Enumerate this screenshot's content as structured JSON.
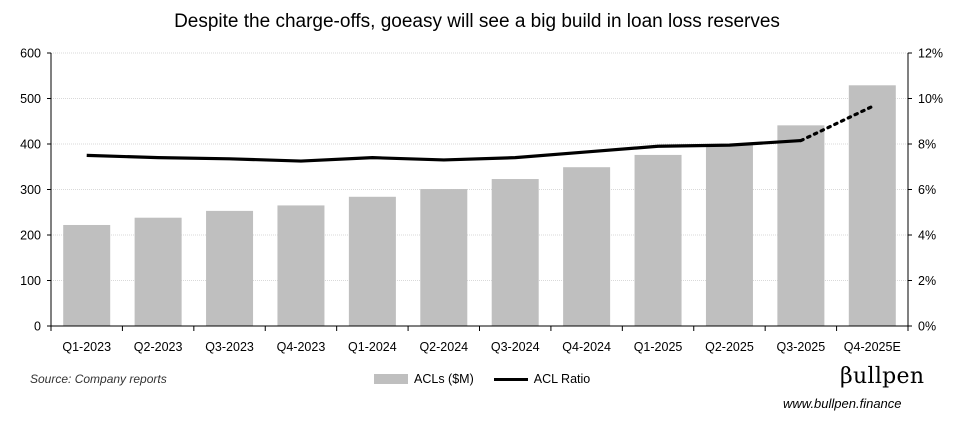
{
  "chart_data": {
    "type": "bar",
    "title": "Despite the charge-offs, goeasy will see a big build in loan loss reserves",
    "categories": [
      "Q1-2023",
      "Q2-2023",
      "Q3-2023",
      "Q4-2023",
      "Q1-2024",
      "Q2-2024",
      "Q3-2024",
      "Q4-2024",
      "Q1-2025",
      "Q2-2025",
      "Q3-2025",
      "Q4-2025E"
    ],
    "series": [
      {
        "name": "ACLs ($M)",
        "type": "bar",
        "axis": "left",
        "color": "#bfbfbf",
        "values": [
          222,
          238,
          253,
          265,
          284,
          301,
          323,
          349,
          376,
          400,
          441,
          529
        ]
      },
      {
        "name": "ACL Ratio",
        "type": "line",
        "axis": "right",
        "color": "#000000",
        "values": [
          7.5,
          7.4,
          7.35,
          7.25,
          7.4,
          7.3,
          7.4,
          7.65,
          7.9,
          7.95,
          8.15,
          9.65
        ],
        "dotted_from_index": 10
      }
    ],
    "y_left": {
      "min": 0,
      "max": 600,
      "ticks": [
        0,
        100,
        200,
        300,
        400,
        500,
        600
      ]
    },
    "y_right": {
      "min": 0,
      "max": 12,
      "ticks": [
        "0%",
        "2%",
        "4%",
        "6%",
        "8%",
        "10%",
        "12%"
      ]
    },
    "grid": true,
    "legend_position": "bottom-center"
  },
  "footer": {
    "source": "Source: Company reports",
    "brand": "βullpen",
    "website": "www.bullpen.finance"
  }
}
